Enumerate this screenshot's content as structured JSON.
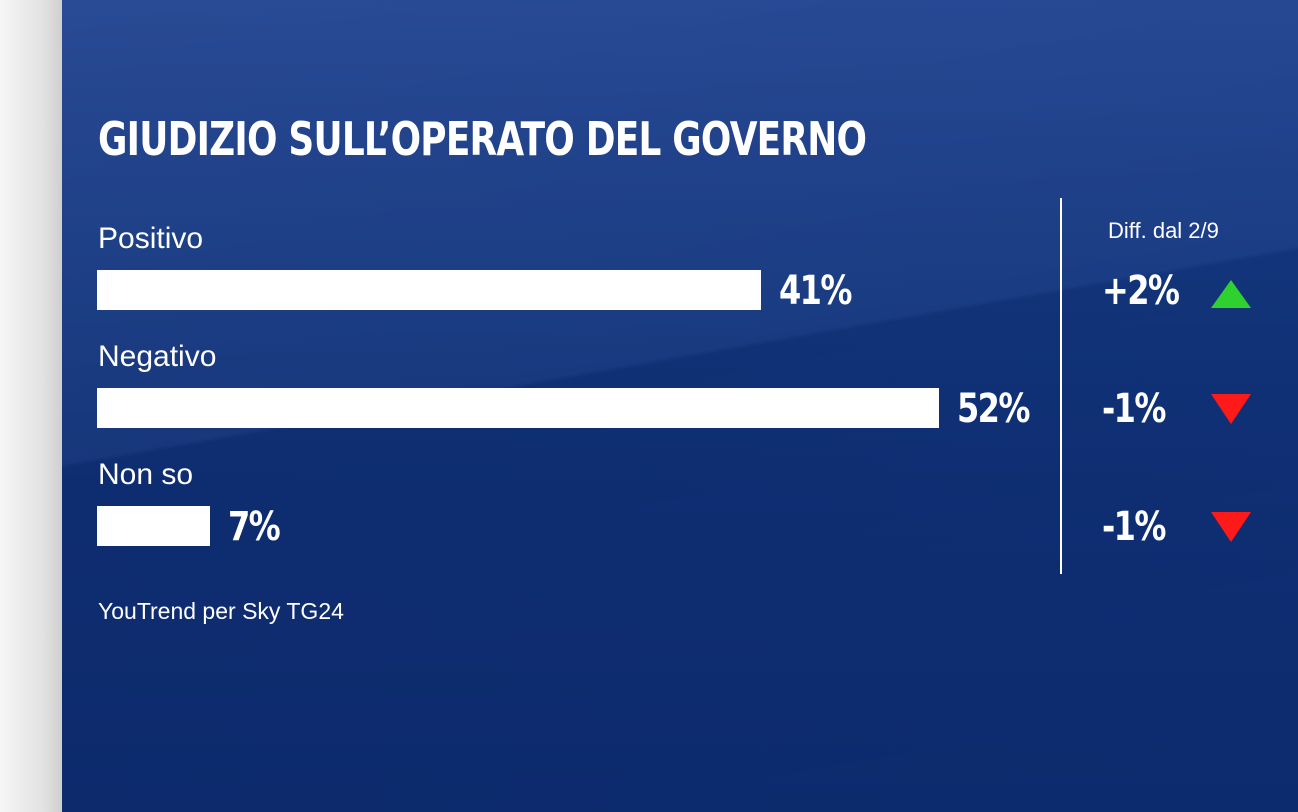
{
  "chart_data": {
    "type": "bar",
    "orientation": "horizontal",
    "title": "GIUDIZIO SULL’OPERATO DEL GOVERNO",
    "categories": [
      "Positivo",
      "Negativo",
      "Non so"
    ],
    "values": [
      41,
      52,
      7
    ],
    "value_labels": [
      "41%",
      "52%",
      "7%"
    ],
    "unit": "%",
    "diff_header": "Diff. dal 2/9",
    "diff_values": [
      2,
      -1,
      -1
    ],
    "diff_labels": [
      "+2%",
      "-1%",
      "-1%"
    ],
    "source": "YouTrend per Sky TG24",
    "grid": false
  },
  "colors": {
    "background": "#13367f",
    "bar": "#ffffff",
    "up": "#2fd12f",
    "down": "#ff1a1a"
  },
  "icons": {
    "up": "triangle-up-icon",
    "down": "triangle-down-icon"
  }
}
